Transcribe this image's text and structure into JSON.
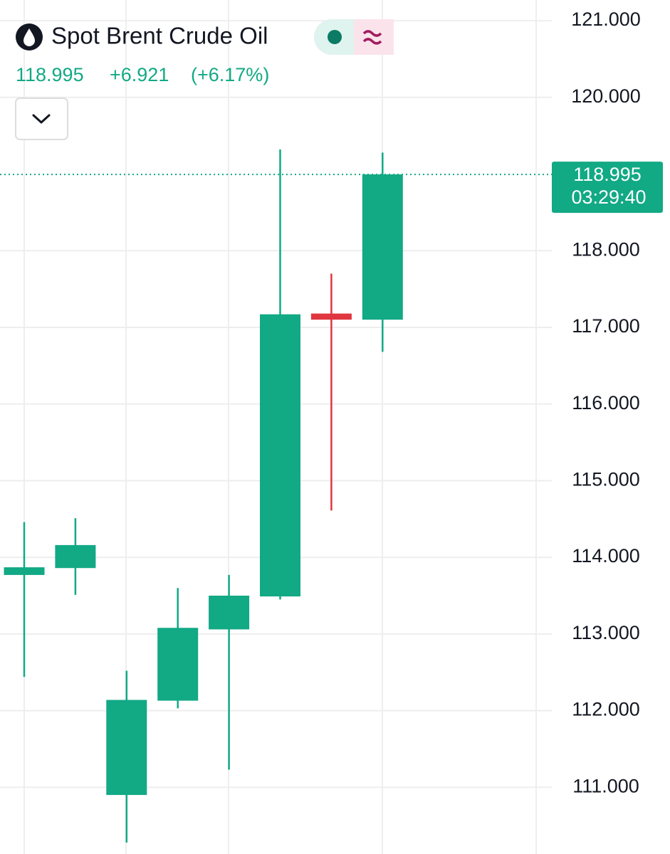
{
  "chart_data": {
    "type": "candlestick",
    "title": "Spot Brent Crude Oil",
    "change": "+6.921",
    "change_percent": "(+6.17%)",
    "last_price": 118.995,
    "last_time": "03:29:40",
    "open": [
      113.77,
      113.86,
      110.9,
      112.13,
      113.06,
      113.49,
      117.18,
      117.1
    ],
    "high": [
      114.46,
      114.51,
      112.52,
      113.6,
      113.77,
      119.32,
      117.7,
      119.28
    ],
    "low": [
      112.44,
      113.51,
      110.28,
      112.03,
      111.23,
      113.45,
      114.61,
      116.68
    ],
    "close": [
      113.87,
      114.16,
      112.14,
      113.08,
      113.5,
      117.17,
      117.1,
      118.995
    ],
    "up_color": "#12a985",
    "down_color": "#e0363f",
    "ylim": [
      110.13,
      121.27
    ],
    "yticks": [
      {
        "value": 111,
        "label": "111.000"
      },
      {
        "value": 112,
        "label": "112.000"
      },
      {
        "value": 113,
        "label": "113.000"
      },
      {
        "value": 114,
        "label": "114.000"
      },
      {
        "value": 115,
        "label": "115.000"
      },
      {
        "value": 116,
        "label": "116.000"
      },
      {
        "value": 117,
        "label": "117.000"
      },
      {
        "value": 118,
        "label": "118.000"
      },
      {
        "value": 120,
        "label": "120.000"
      },
      {
        "value": 121,
        "label": "121.000"
      }
    ],
    "grid": true
  }
}
